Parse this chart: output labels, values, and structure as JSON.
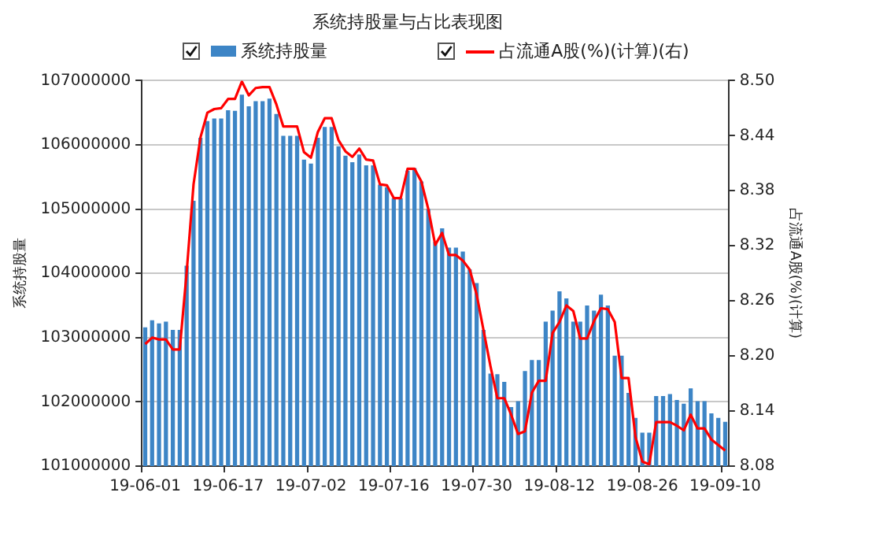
{
  "chart_data": {
    "type": "bar",
    "title": "系统持股量与占比表现图",
    "ylabel": "系统持股量",
    "y2label": "占流通A股(%)(计算)",
    "categories": [
      "19-06-01",
      null,
      null,
      null,
      null,
      null,
      null,
      null,
      null,
      null,
      null,
      null,
      "19-06-17",
      null,
      null,
      null,
      null,
      null,
      null,
      null,
      null,
      null,
      null,
      null,
      "19-07-02",
      null,
      null,
      null,
      null,
      null,
      null,
      null,
      null,
      null,
      null,
      null,
      "19-07-16",
      null,
      null,
      null,
      null,
      null,
      null,
      null,
      null,
      null,
      null,
      null,
      "19-07-30",
      null,
      null,
      null,
      null,
      null,
      null,
      null,
      null,
      null,
      null,
      null,
      "19-08-12",
      null,
      null,
      null,
      null,
      null,
      null,
      null,
      null,
      null,
      null,
      null,
      "19-08-26",
      null,
      null,
      null,
      null,
      null,
      null,
      null,
      null,
      null,
      null,
      null,
      "19-09-10"
    ],
    "series": [
      {
        "name": "系统持股量",
        "type": "bar",
        "color": "#3d85c6",
        "values": [
          103160000,
          103270000,
          103220000,
          103250000,
          103120000,
          103120000,
          104120000,
          105130000,
          106110000,
          106370000,
          106410000,
          106410000,
          106540000,
          106530000,
          106780000,
          106600000,
          106680000,
          106680000,
          106720000,
          106480000,
          106140000,
          106140000,
          106140000,
          105770000,
          105710000,
          106110000,
          106280000,
          106280000,
          105980000,
          105830000,
          105730000,
          105850000,
          105680000,
          105680000,
          105380000,
          105340000,
          105170000,
          105170000,
          105600000,
          105640000,
          105430000,
          105000000,
          104490000,
          104700000,
          104400000,
          104400000,
          104340000,
          104060000,
          103850000,
          103120000,
          102440000,
          102430000,
          102310000,
          101920000,
          102010000,
          102480000,
          102650000,
          102650000,
          103250000,
          103420000,
          103720000,
          103610000,
          103250000,
          103250000,
          103500000,
          103420000,
          103670000,
          103500000,
          102720000,
          102720000,
          102140000,
          101750000,
          101520000,
          101520000,
          102090000,
          102090000,
          102120000,
          102030000,
          101970000,
          102210000,
          102010000,
          102010000,
          101820000,
          101750000,
          101690000
        ]
      },
      {
        "name": "占流通A股(%)(计算)(右)",
        "type": "line",
        "axis": "y2",
        "color": "#ff0000",
        "values": [
          8.213,
          8.22,
          8.218,
          8.218,
          8.207,
          8.207,
          8.291,
          8.387,
          8.438,
          8.465,
          8.469,
          8.47,
          8.48,
          8.48,
          8.499,
          8.484,
          8.492,
          8.493,
          8.493,
          8.474,
          8.45,
          8.45,
          8.45,
          8.422,
          8.416,
          8.444,
          8.459,
          8.459,
          8.435,
          8.423,
          8.417,
          8.426,
          8.414,
          8.413,
          8.387,
          8.386,
          8.372,
          8.372,
          8.404,
          8.404,
          8.39,
          8.36,
          8.321,
          8.334,
          8.31,
          8.31,
          8.304,
          8.294,
          8.267,
          8.228,
          8.189,
          8.154,
          8.154,
          8.136,
          8.115,
          8.118,
          8.16,
          8.173,
          8.173,
          8.225,
          8.237,
          8.255,
          8.249,
          8.219,
          8.219,
          8.238,
          8.252,
          8.251,
          8.237,
          8.176,
          8.176,
          8.112,
          8.085,
          8.082,
          8.128,
          8.128,
          8.128,
          8.124,
          8.119,
          8.136,
          8.121,
          8.121,
          8.109,
          8.103,
          8.097
        ]
      }
    ],
    "ylim": [
      101000000,
      107000000
    ],
    "yticks": [
      101000000,
      102000000,
      103000000,
      104000000,
      105000000,
      106000000,
      107000000
    ],
    "y2lim": [
      8.08,
      8.5
    ],
    "y2ticks": [
      8.08,
      8.14,
      {
        "value": 8.2,
        "label": "8.20"
      },
      8.26,
      8.32,
      8.38,
      8.44,
      {
        "value": 8.5,
        "label": "8.50"
      }
    ],
    "grid": "y",
    "legend": "top"
  }
}
